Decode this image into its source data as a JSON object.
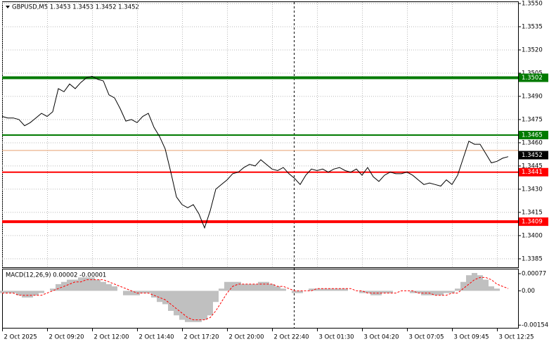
{
  "chart_data": [
    {
      "type": "line",
      "title": "GBPUSD,M5  1.3453 1.3453 1.3452 1.3452",
      "color": "#000000",
      "grid": true,
      "ylim": [
        1.33795,
        1.35509
      ],
      "yticks": [
        {
          "value": 1.355,
          "label": "1.3550"
        },
        1.3535,
        {
          "value": 1.352,
          "label": "1.3520"
        },
        1.3505,
        {
          "value": 1.349,
          "label": "1.3490"
        },
        1.3475,
        {
          "value": 1.346,
          "label": "1.3460"
        },
        1.3445,
        {
          "value": 1.343,
          "label": "1.3430"
        },
        1.3415,
        {
          "value": 1.34,
          "label": "1.3400"
        },
        1.3385
      ],
      "xtick_labels": [
        "2 Oct 2025",
        "2 Oct 09:20",
        "2 Oct 12:00",
        "2 Oct 14:40",
        "2 Oct 17:20",
        "2 Oct 20:00",
        "2 Oct 22:40",
        "3 Oct 01:30",
        "3 Oct 04:20",
        "3 Oct 07:05",
        "3 Oct 09:45",
        "3 Oct 12:25"
      ],
      "levels": [
        {
          "value": 1.3502,
          "color": "#007a00",
          "line_width": 4
        },
        {
          "value": 1.3465,
          "color": "#007a00",
          "line_width": 2
        },
        {
          "value": 1.3441,
          "color": "#ff0000",
          "line_width": 2
        },
        {
          "value": 1.3409,
          "color": "#ff0000",
          "line_width": 4
        }
      ],
      "ask_line": {
        "value": 1.3455,
        "color": "#e8a070"
      },
      "last_price": 1.3452,
      "values": [
        1.3477,
        1.3476,
        1.3476,
        1.3475,
        1.3471,
        1.3473,
        1.3476,
        1.3479,
        1.3477,
        1.348,
        1.3495,
        1.3493,
        1.3498,
        1.3495,
        1.3499,
        1.3502,
        1.3503,
        1.3501,
        1.35,
        1.3491,
        1.3489,
        1.3482,
        1.3474,
        1.3475,
        1.3473,
        1.3477,
        1.3479,
        1.347,
        1.3464,
        1.3456,
        1.3441,
        1.3425,
        1.342,
        1.3418,
        1.342,
        1.3414,
        1.3405,
        1.3416,
        1.343,
        1.3433,
        1.3436,
        1.344,
        1.3441,
        1.3444,
        1.3446,
        1.3445,
        1.3449,
        1.3446,
        1.3443,
        1.3442,
        1.3444,
        1.344,
        1.3437,
        1.3433,
        1.3439,
        1.3443,
        1.3442,
        1.3443,
        1.3441,
        1.3443,
        1.3444,
        1.3442,
        1.3441,
        1.3443,
        1.3439,
        1.3444,
        1.3438,
        1.3435,
        1.3439,
        1.3441,
        1.344,
        1.344,
        1.3441,
        1.3439,
        1.3436,
        1.3433,
        1.3434,
        1.3433,
        1.3432,
        1.3436,
        1.3433,
        1.3439,
        1.345,
        1.3461,
        1.3459,
        1.3459,
        1.3453,
        1.3447,
        1.3448,
        1.345,
        1.3451
      ]
    },
    {
      "type": "macd",
      "title": "MACD(12,26,9) 0.00002 -0.00001",
      "ylim": [
        -0.00166,
        0.00096
      ],
      "yticks": [
        0.00077,
        {
          "value": 0,
          "label": "0.00"
        },
        -0.00154
      ],
      "series": [
        {
          "type": "bar",
          "color": "#c0c0c0",
          "values": [
            -0.0001,
            -0.0001,
            -0.0001,
            -0.0002,
            -0.0003,
            -0.0003,
            -0.0002,
            -0.0001,
            0,
            0.0001,
            0.0003,
            0.0004,
            0.0005,
            0.0005,
            0.0006,
            0.0006,
            0.0006,
            0.0005,
            0.0004,
            0.0003,
            0.0002,
            0,
            -0.0002,
            -0.0002,
            -0.0002,
            -0.0001,
            -0.0001,
            -0.0003,
            -0.0005,
            -0.0006,
            -0.0009,
            -0.0011,
            -0.0013,
            -0.0014,
            -0.0014,
            -0.0014,
            -0.0013,
            -0.0011,
            -0.0005,
            0.0001,
            0.0004,
            0.0004,
            0.0004,
            0.0003,
            0.0003,
            0.0003,
            0.0004,
            0.0004,
            0.0003,
            0.0002,
            0.0001,
            0,
            -0.0001,
            -0.0001,
            0,
            0.0001,
            0.0001,
            0.0001,
            0.0001,
            0.0001,
            0.0001,
            0.0001,
            0,
            0,
            -0.0001,
            -0.0001,
            -0.0002,
            -0.0002,
            -0.0001,
            -0.0001,
            0,
            0,
            0,
            -0.0001,
            -0.0001,
            -0.0002,
            -0.0002,
            -0.0002,
            -0.0002,
            -0.0001,
            -0.0001,
            0.0001,
            0.0004,
            0.0007,
            0.0008,
            0.0007,
            0.0005,
            0.0002,
            0.0001,
            0,
            0
          ]
        },
        {
          "type": "line",
          "color": "#ff0000",
          "values": [
            -0.0001,
            -0.0001,
            -0.0001,
            -0.0002,
            -0.0002,
            -0.0002,
            -0.0002,
            -0.0002,
            -0.0001,
            0,
            0.0001,
            0.0002,
            0.0003,
            0.0004,
            0.0004,
            0.0005,
            0.0005,
            0.0005,
            0.0005,
            0.0004,
            0.0003,
            0.0002,
            0.0001,
            0,
            -0.0001,
            -0.0001,
            -0.0001,
            -0.0002,
            -0.0003,
            -0.0004,
            -0.0006,
            -0.0008,
            -0.001,
            -0.0012,
            -0.0013,
            -0.0013,
            -0.0013,
            -0.0012,
            -0.0009,
            -0.0005,
            -0.0001,
            0.0002,
            0.0003,
            0.0003,
            0.0003,
            0.0003,
            0.0003,
            0.0003,
            0.0003,
            0.0002,
            0.0002,
            0.0001,
            0,
            0,
            0,
            0,
            0.0001,
            0.0001,
            0.0001,
            0.0001,
            0.0001,
            0.0001,
            0.0001,
            0,
            0,
            -0.0001,
            -0.0001,
            -0.0001,
            -0.0001,
            -0.0001,
            -0.0001,
            0,
            0,
            0,
            -0.0001,
            -0.0001,
            -0.0001,
            -0.0002,
            -0.0002,
            -0.0002,
            -0.0001,
            -0.0001,
            0.0001,
            0.0003,
            0.0005,
            0.0006,
            0.0006,
            0.0005,
            0.0003,
            0.0002,
            0.0001
          ]
        }
      ]
    }
  ]
}
